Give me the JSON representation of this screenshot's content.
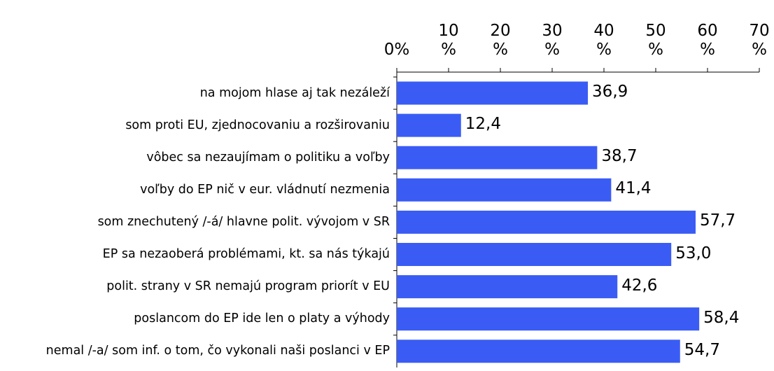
{
  "chart_data": {
    "type": "bar",
    "orientation": "horizontal",
    "categories": [
      "na mojom hlase aj tak nezáleží",
      "som proti EU, zjednocovaniu a rozširovaniu",
      "vôbec sa nezaujímam o politiku a voľby",
      "voľby do EP nič v eur. vládnutí nezmenia",
      "som znechutený /-á/ hlavne polit. vývojom v SR",
      "EP sa nezaoberá problémami, kt. sa nás týkajú",
      "polit. strany v SR nemajú program priorít v EU",
      "poslancom do EP ide len o platy a výhody",
      "nemal /-a/ som inf. o tom, čo vykonali naši poslanci v EP"
    ],
    "values": [
      36.9,
      12.4,
      38.7,
      41.4,
      57.7,
      53.0,
      42.6,
      58.4,
      54.7
    ],
    "value_labels": [
      "36,9",
      "12,4",
      "38,7",
      "41,4",
      "57,7",
      "53,0",
      "42,6",
      "58,4",
      "54,7"
    ],
    "color": "#3a5cf5",
    "xlim": [
      0,
      70
    ],
    "xticks": [
      {
        "value": 0,
        "label": "0%"
      },
      {
        "value": 10,
        "label": "10 %"
      },
      {
        "value": 20,
        "label": "20 %"
      },
      {
        "value": 30,
        "label": "30 %"
      },
      {
        "value": 40,
        "label": "40 %"
      },
      {
        "value": 50,
        "label": "50 %"
      },
      {
        "value": 60,
        "label": "60 %"
      },
      {
        "value": 70,
        "label": "70 %"
      }
    ],
    "xaxis_position": "top",
    "grid": false
  }
}
